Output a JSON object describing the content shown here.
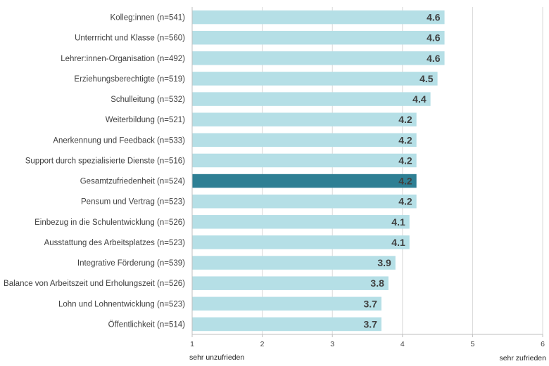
{
  "chart_data": {
    "type": "bar",
    "orientation": "horizontal",
    "categories": [
      "Kolleg:innen (n=541)",
      "Unterrricht und Klasse (n=560)",
      "Lehrer:innen-Organisation (n=492)",
      "Erziehungsberechtigte (n=519)",
      "Schulleitung (n=532)",
      "Weiterbildung (n=521)",
      "Anerkennung und Feedback (n=533)",
      "Support durch spezialisierte Dienste (n=516)",
      "Gesamtzufriedenheit (n=524)",
      "Pensum und Vertrag (n=523)",
      "Einbezug in die Schulentwicklung (n=526)",
      "Ausstattung des Arbeitsplatzes (n=523)",
      "Integrative Förderung (n=539)",
      "Balance von Arbeitszeit und Erholungszeit (n=526)",
      "Lohn und Lohnentwicklung (n=523)",
      "Öffentlichkeit (n=514)"
    ],
    "values": [
      4.6,
      4.6,
      4.6,
      4.5,
      4.4,
      4.2,
      4.2,
      4.2,
      4.2,
      4.2,
      4.1,
      4.1,
      3.9,
      3.8,
      3.7,
      3.7
    ],
    "value_labels": [
      "4.6",
      "4.6",
      "4.6",
      "4.5",
      "4.4",
      "4.2",
      "4.2",
      "4.2",
      "4.2",
      "4.2",
      "4.1",
      "4.1",
      "3.9",
      "3.8",
      "3.7",
      "3.7"
    ],
    "highlight_index": 8,
    "xlim": [
      1,
      6
    ],
    "x_ticks": [
      "1",
      "2",
      "3",
      "4",
      "5",
      "6"
    ],
    "x_anchor_left": "sehr unzufrieden",
    "x_anchor_right": "sehr zufrieden",
    "grid": true,
    "colors": {
      "bar": "#b5dfe6",
      "highlight": "#2e7f94",
      "grid": "#d9d9d9",
      "axis": "#bfbfbf",
      "text": "#404040"
    }
  }
}
